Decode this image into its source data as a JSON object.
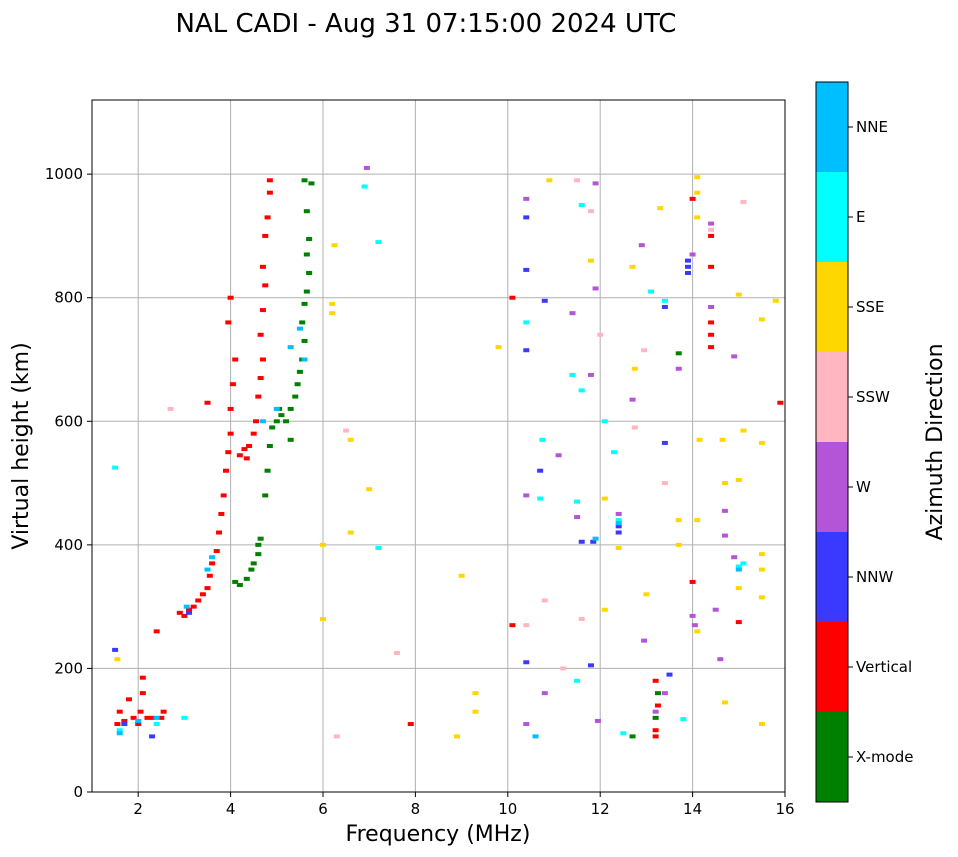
{
  "chart_data": {
    "type": "scatter",
    "title": "NAL CADI - Aug 31 07:15:00 2024 UTC",
    "xlabel": "Frequency (MHz)",
    "ylabel": "Virtual height (km)",
    "xlim": [
      1,
      16
    ],
    "ylim": [
      0,
      1120
    ],
    "xticks": [
      2,
      4,
      6,
      8,
      10,
      12,
      14,
      16
    ],
    "yticks": [
      0,
      200,
      400,
      600,
      800,
      1000
    ],
    "grid": true,
    "colorbar": {
      "title": "Azimuth Direction",
      "categories": [
        {
          "label": "X-mode",
          "color": "#008000"
        },
        {
          "label": "Vertical",
          "color": "#ff0000"
        },
        {
          "label": "NNW",
          "color": "#3a3aff"
        },
        {
          "label": "W",
          "color": "#b455d8"
        },
        {
          "label": "SSW",
          "color": "#ffb6c1"
        },
        {
          "label": "SSE",
          "color": "#ffd700"
        },
        {
          "label": "E",
          "color": "#00ffff"
        },
        {
          "label": "NNE",
          "color": "#00bfff"
        }
      ]
    },
    "series": [
      {
        "name": "Vertical",
        "points": [
          [
            1.55,
            110
          ],
          [
            1.6,
            130
          ],
          [
            1.7,
            115
          ],
          [
            1.8,
            150
          ],
          [
            1.9,
            120
          ],
          [
            2.0,
            110
          ],
          [
            2.05,
            130
          ],
          [
            2.1,
            160
          ],
          [
            2.1,
            185
          ],
          [
            2.2,
            120
          ],
          [
            2.3,
            120
          ],
          [
            2.4,
            260
          ],
          [
            2.5,
            120
          ],
          [
            2.55,
            130
          ],
          [
            2.9,
            290
          ],
          [
            3.0,
            285
          ],
          [
            3.1,
            295
          ],
          [
            3.2,
            300
          ],
          [
            3.3,
            310
          ],
          [
            3.4,
            320
          ],
          [
            3.5,
            330
          ],
          [
            3.55,
            350
          ],
          [
            3.6,
            370
          ],
          [
            3.7,
            390
          ],
          [
            3.75,
            420
          ],
          [
            3.8,
            450
          ],
          [
            3.85,
            480
          ],
          [
            3.9,
            520
          ],
          [
            3.95,
            550
          ],
          [
            4.0,
            580
          ],
          [
            4.0,
            620
          ],
          [
            4.05,
            660
          ],
          [
            4.1,
            700
          ],
          [
            4.0,
            800
          ],
          [
            3.95,
            760
          ],
          [
            3.5,
            630
          ],
          [
            4.2,
            545
          ],
          [
            4.3,
            555
          ],
          [
            4.35,
            540
          ],
          [
            4.4,
            560
          ],
          [
            4.5,
            580
          ],
          [
            4.55,
            600
          ],
          [
            4.6,
            640
          ],
          [
            4.65,
            670
          ],
          [
            4.7,
            700
          ],
          [
            4.65,
            740
          ],
          [
            4.7,
            780
          ],
          [
            4.75,
            820
          ],
          [
            4.7,
            850
          ],
          [
            4.75,
            900
          ],
          [
            4.8,
            930
          ],
          [
            4.85,
            970
          ],
          [
            4.85,
            990
          ],
          [
            10.1,
            800
          ],
          [
            10.1,
            270
          ],
          [
            13.2,
            180
          ],
          [
            13.2,
            100
          ],
          [
            13.25,
            140
          ],
          [
            13.2,
            90
          ],
          [
            14.0,
            960
          ],
          [
            14.0,
            340
          ],
          [
            14.4,
            900
          ],
          [
            14.4,
            850
          ],
          [
            14.4,
            760
          ],
          [
            14.4,
            740
          ],
          [
            14.4,
            720
          ],
          [
            15.0,
            275
          ],
          [
            15.9,
            630
          ],
          [
            7.9,
            110
          ]
        ]
      },
      {
        "name": "X-mode",
        "points": [
          [
            4.1,
            340
          ],
          [
            4.2,
            335
          ],
          [
            4.35,
            345
          ],
          [
            4.45,
            360
          ],
          [
            4.5,
            370
          ],
          [
            4.6,
            385
          ],
          [
            4.6,
            400
          ],
          [
            4.65,
            410
          ],
          [
            4.75,
            480
          ],
          [
            4.8,
            520
          ],
          [
            4.85,
            560
          ],
          [
            4.9,
            590
          ],
          [
            5.0,
            600
          ],
          [
            5.05,
            620
          ],
          [
            5.1,
            610
          ],
          [
            5.2,
            600
          ],
          [
            5.3,
            620
          ],
          [
            5.4,
            640
          ],
          [
            5.45,
            660
          ],
          [
            5.5,
            680
          ],
          [
            5.55,
            700
          ],
          [
            5.6,
            730
          ],
          [
            5.55,
            760
          ],
          [
            5.6,
            790
          ],
          [
            5.65,
            810
          ],
          [
            5.7,
            840
          ],
          [
            5.65,
            870
          ],
          [
            5.7,
            895
          ],
          [
            5.65,
            940
          ],
          [
            5.6,
            990
          ],
          [
            5.75,
            985
          ],
          [
            5.3,
            570
          ],
          [
            12.7,
            90
          ],
          [
            13.2,
            120
          ],
          [
            13.25,
            160
          ],
          [
            13.7,
            710
          ]
        ]
      },
      {
        "name": "NNW",
        "points": [
          [
            1.5,
            230
          ],
          [
            1.7,
            110
          ],
          [
            2.3,
            90
          ],
          [
            3.1,
            290
          ],
          [
            10.4,
            845
          ],
          [
            10.4,
            715
          ],
          [
            10.4,
            210
          ],
          [
            10.4,
            930
          ],
          [
            10.7,
            520
          ],
          [
            10.8,
            795
          ],
          [
            11.6,
            405
          ],
          [
            11.8,
            205
          ],
          [
            11.85,
            405
          ],
          [
            12.4,
            420
          ],
          [
            12.4,
            430
          ],
          [
            13.4,
            785
          ],
          [
            13.4,
            565
          ],
          [
            13.5,
            190
          ],
          [
            13.9,
            850
          ],
          [
            13.9,
            840
          ],
          [
            13.9,
            860
          ]
        ]
      },
      {
        "name": "W",
        "points": [
          [
            10.4,
            960
          ],
          [
            10.4,
            480
          ],
          [
            10.4,
            110
          ],
          [
            10.8,
            160
          ],
          [
            11.1,
            545
          ],
          [
            11.4,
            775
          ],
          [
            11.5,
            445
          ],
          [
            11.8,
            675
          ],
          [
            11.9,
            985
          ],
          [
            11.9,
            815
          ],
          [
            11.95,
            115
          ],
          [
            12.4,
            450
          ],
          [
            12.7,
            635
          ],
          [
            12.9,
            885
          ],
          [
            12.95,
            245
          ],
          [
            13.2,
            130
          ],
          [
            13.4,
            160
          ],
          [
            13.7,
            685
          ],
          [
            14.0,
            870
          ],
          [
            14.0,
            285
          ],
          [
            14.05,
            270
          ],
          [
            14.4,
            920
          ],
          [
            14.4,
            785
          ],
          [
            14.5,
            295
          ],
          [
            14.6,
            215
          ],
          [
            14.7,
            455
          ],
          [
            14.7,
            415
          ],
          [
            14.9,
            705
          ],
          [
            14.9,
            380
          ],
          [
            6.95,
            1010
          ]
        ]
      },
      {
        "name": "SSW",
        "points": [
          [
            2.7,
            620
          ],
          [
            6.5,
            585
          ],
          [
            6.3,
            90
          ],
          [
            10.4,
            270
          ],
          [
            10.8,
            310
          ],
          [
            11.2,
            200
          ],
          [
            11.5,
            990
          ],
          [
            11.6,
            280
          ],
          [
            11.8,
            940
          ],
          [
            12.0,
            740
          ],
          [
            12.75,
            590
          ],
          [
            12.95,
            715
          ],
          [
            13.4,
            500
          ],
          [
            14.4,
            910
          ],
          [
            15.1,
            955
          ],
          [
            7.6,
            225
          ]
        ]
      },
      {
        "name": "SSE",
        "points": [
          [
            1.55,
            215
          ],
          [
            6.25,
            885
          ],
          [
            6.2,
            790
          ],
          [
            6.2,
            775
          ],
          [
            6.0,
            400
          ],
          [
            6.0,
            280
          ],
          [
            6.6,
            570
          ],
          [
            6.6,
            420
          ],
          [
            7.0,
            490
          ],
          [
            9.8,
            720
          ],
          [
            9.0,
            350
          ],
          [
            9.3,
            160
          ],
          [
            9.3,
            130
          ],
          [
            8.9,
            90
          ],
          [
            10.9,
            990
          ],
          [
            11.8,
            860
          ],
          [
            12.1,
            475
          ],
          [
            12.1,
            295
          ],
          [
            12.4,
            395
          ],
          [
            12.7,
            850
          ],
          [
            12.75,
            685
          ],
          [
            13.0,
            320
          ],
          [
            13.3,
            945
          ],
          [
            13.7,
            440
          ],
          [
            13.7,
            400
          ],
          [
            14.1,
            995
          ],
          [
            14.1,
            970
          ],
          [
            14.1,
            930
          ],
          [
            14.15,
            570
          ],
          [
            14.1,
            440
          ],
          [
            14.1,
            260
          ],
          [
            14.65,
            570
          ],
          [
            14.7,
            500
          ],
          [
            14.7,
            145
          ],
          [
            15.0,
            805
          ],
          [
            15.0,
            505
          ],
          [
            15.0,
            330
          ],
          [
            15.1,
            585
          ],
          [
            15.5,
            765
          ],
          [
            15.5,
            565
          ],
          [
            15.5,
            385
          ],
          [
            15.5,
            360
          ],
          [
            15.5,
            315
          ],
          [
            15.5,
            110
          ],
          [
            15.8,
            795
          ]
        ]
      },
      {
        "name": "E",
        "points": [
          [
            1.5,
            525
          ],
          [
            1.6,
            100
          ],
          [
            2.4,
            110
          ],
          [
            3.0,
            120
          ],
          [
            7.2,
            890
          ],
          [
            7.2,
            395
          ],
          [
            10.4,
            760
          ],
          [
            10.7,
            475
          ],
          [
            10.75,
            570
          ],
          [
            11.4,
            675
          ],
          [
            11.5,
            470
          ],
          [
            11.5,
            180
          ],
          [
            11.6,
            950
          ],
          [
            11.6,
            650
          ],
          [
            12.1,
            600
          ],
          [
            12.3,
            550
          ],
          [
            12.4,
            440
          ],
          [
            12.5,
            95
          ],
          [
            13.1,
            810
          ],
          [
            13.4,
            795
          ],
          [
            13.8,
            118
          ],
          [
            15.0,
            365
          ],
          [
            15.1,
            370
          ],
          [
            6.9,
            980
          ]
        ]
      },
      {
        "name": "NNE",
        "points": [
          [
            1.6,
            95
          ],
          [
            2.0,
            115
          ],
          [
            2.4,
            120
          ],
          [
            3.05,
            300
          ],
          [
            3.5,
            360
          ],
          [
            3.6,
            380
          ],
          [
            4.7,
            600
          ],
          [
            5.0,
            620
          ],
          [
            5.3,
            720
          ],
          [
            5.5,
            750
          ],
          [
            5.6,
            700
          ],
          [
            10.6,
            90
          ],
          [
            11.9,
            410
          ],
          [
            12.4,
            435
          ],
          [
            15.0,
            360
          ]
        ]
      }
    ]
  }
}
